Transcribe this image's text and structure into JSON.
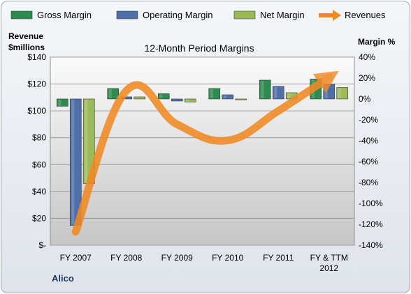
{
  "chart_data": {
    "type": "bar",
    "title": "12-Month Period Margins",
    "footer": "Alico",
    "left_axis_title": [
      "Revenue",
      "$millions"
    ],
    "right_axis_title": "Margin %",
    "categories": [
      [
        "FY 2007"
      ],
      [
        "FY 2008"
      ],
      [
        "FY 2009"
      ],
      [
        "FY 2010"
      ],
      [
        "FY 2011"
      ],
      [
        "FY & TTM",
        "2012"
      ]
    ],
    "left_ylim": [
      0,
      140
    ],
    "left_ticks": [
      "$-",
      "$20",
      "$40",
      "$60",
      "$80",
      "$100",
      "$120",
      "$140"
    ],
    "right_ylim": [
      -140,
      40
    ],
    "right_ticks": [
      "-140%",
      "-120%",
      "-100%",
      "-80%",
      "-60%",
      "-40%",
      "-20%",
      "0%",
      "20%",
      "40%"
    ],
    "grid": true,
    "legend_position": "top",
    "series": [
      {
        "name": "Gross Margin",
        "kind": "bar",
        "axis": "right",
        "color": "#2e8b4f",
        "values": [
          -7,
          10,
          5,
          10,
          18,
          19
        ]
      },
      {
        "name": "Operating Margin",
        "kind": "bar",
        "axis": "right",
        "color": "#4f6fa8",
        "values": [
          -121,
          2,
          -2,
          4,
          12,
          14
        ]
      },
      {
        "name": "Net Margin",
        "kind": "bar",
        "axis": "right",
        "color": "#9bbb59",
        "values": [
          -81,
          2,
          -3,
          -1,
          6,
          11
        ]
      },
      {
        "name": "Revenues",
        "kind": "line",
        "axis": "left",
        "color": "#f08a24",
        "values": [
          10,
          115,
          90,
          78,
          100,
          125
        ]
      }
    ]
  }
}
